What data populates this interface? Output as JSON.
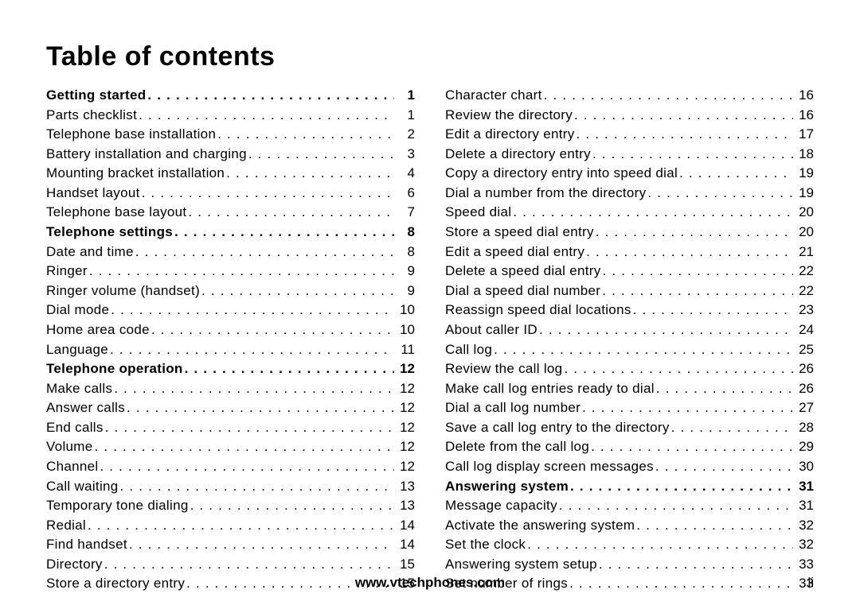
{
  "title": "Table of contents",
  "footer_url": "www.vtechphones.com",
  "page_number": "ii",
  "columns": [
    [
      {
        "label": "Getting started",
        "page": "1",
        "bold": true
      },
      {
        "label": "Parts checklist",
        "page": "1",
        "bold": false
      },
      {
        "label": "Telephone base installation",
        "page": "2",
        "bold": false
      },
      {
        "label": "Battery installation and charging",
        "page": "3",
        "bold": false
      },
      {
        "label": "Mounting bracket installation",
        "page": "4",
        "bold": false
      },
      {
        "label": "Handset layout",
        "page": "6",
        "bold": false
      },
      {
        "label": "Telephone base layout",
        "page": "7",
        "bold": false
      },
      {
        "label": "Telephone settings",
        "page": "8",
        "bold": true
      },
      {
        "label": "Date and time",
        "page": "8",
        "bold": false
      },
      {
        "label": "Ringer",
        "page": "9",
        "bold": false
      },
      {
        "label": "Ringer volume (handset)",
        "page": "9",
        "bold": false
      },
      {
        "label": "Dial mode",
        "page": "10",
        "bold": false
      },
      {
        "label": "Home area code",
        "page": "10",
        "bold": false
      },
      {
        "label": "Language",
        "page": "11",
        "bold": false
      },
      {
        "label": "Telephone operation",
        "page": "12",
        "bold": true
      },
      {
        "label": "Make calls",
        "page": "12",
        "bold": false
      },
      {
        "label": "Answer calls",
        "page": "12",
        "bold": false
      },
      {
        "label": "End calls",
        "page": "12",
        "bold": false
      },
      {
        "label": "Volume",
        "page": "12",
        "bold": false
      },
      {
        "label": "Channel",
        "page": "12",
        "bold": false
      },
      {
        "label": "Call waiting",
        "page": "13",
        "bold": false
      },
      {
        "label": "Temporary tone dialing",
        "page": "13",
        "bold": false
      },
      {
        "label": "Redial",
        "page": "14",
        "bold": false
      },
      {
        "label": "Find handset",
        "page": "14",
        "bold": false
      },
      {
        "label": "Directory",
        "page": "15",
        "bold": false
      },
      {
        "label": "Store a directory entry",
        "page": "15",
        "bold": false
      }
    ],
    [
      {
        "label": "Character chart",
        "page": "16",
        "bold": false
      },
      {
        "label": "Review the directory",
        "page": "16",
        "bold": false
      },
      {
        "label": "Edit a directory entry",
        "page": "17",
        "bold": false
      },
      {
        "label": "Delete a directory entry",
        "page": "18",
        "bold": false
      },
      {
        "label": "Copy a directory entry into speed dial",
        "page": "19",
        "bold": false
      },
      {
        "label": "Dial a number from the directory",
        "page": "19",
        "bold": false
      },
      {
        "label": "Speed dial",
        "page": "20",
        "bold": false
      },
      {
        "label": "Store a speed dial entry",
        "page": "20",
        "bold": false
      },
      {
        "label": "Edit a speed dial entry",
        "page": "21",
        "bold": false
      },
      {
        "label": "Delete a speed dial entry",
        "page": "22",
        "bold": false
      },
      {
        "label": "Dial a speed dial number",
        "page": "22",
        "bold": false
      },
      {
        "label": "Reassign speed dial locations",
        "page": "23",
        "bold": false
      },
      {
        "label": "About caller ID",
        "page": "24",
        "bold": false
      },
      {
        "label": "Call log",
        "page": "25",
        "bold": false
      },
      {
        "label": "Review the call log",
        "page": "26",
        "bold": false
      },
      {
        "label": "Make call log entries ready to dial",
        "page": "26",
        "bold": false
      },
      {
        "label": "Dial a call log number",
        "page": "27",
        "bold": false
      },
      {
        "label": "Save a call log entry to the directory",
        "page": "28",
        "bold": false
      },
      {
        "label": "Delete from the call log",
        "page": "29",
        "bold": false
      },
      {
        "label": "Call log display screen messages",
        "page": "30",
        "bold": false
      },
      {
        "label": "Answering system",
        "page": "31",
        "bold": true
      },
      {
        "label": "Message capacity",
        "page": "31",
        "bold": false
      },
      {
        "label": "Activate the answering system",
        "page": "32",
        "bold": false
      },
      {
        "label": "Set the clock",
        "page": "32",
        "bold": false
      },
      {
        "label": "Answering system setup",
        "page": "33",
        "bold": false
      },
      {
        "label": "Set number of rings",
        "page": "33",
        "bold": false
      }
    ]
  ]
}
